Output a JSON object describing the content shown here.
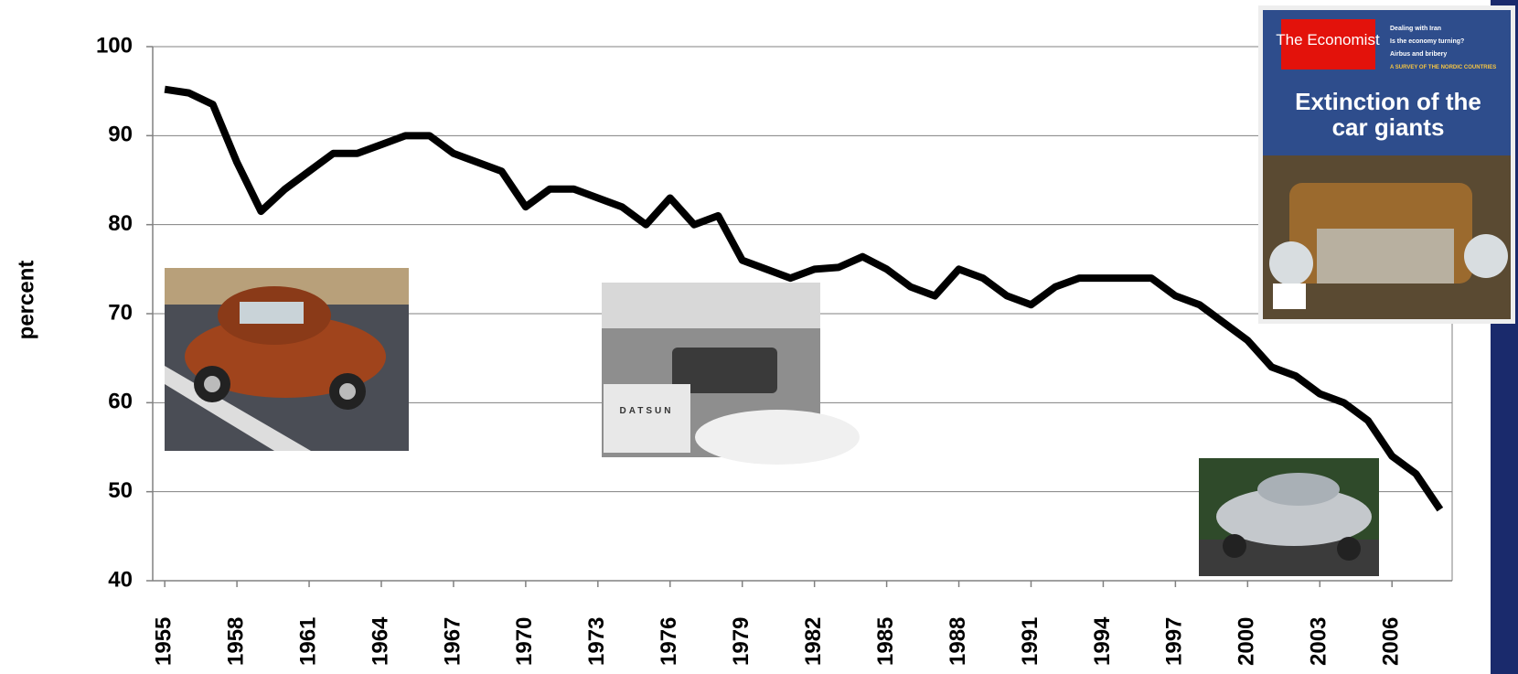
{
  "chart_data": {
    "type": "line",
    "ylabel": "percent",
    "x": [
      1955,
      1956,
      1957,
      1958,
      1959,
      1960,
      1961,
      1962,
      1963,
      1964,
      1965,
      1966,
      1967,
      1968,
      1969,
      1970,
      1971,
      1972,
      1973,
      1974,
      1975,
      1976,
      1977,
      1978,
      1979,
      1980,
      1981,
      1982,
      1983,
      1984,
      1985,
      1986,
      1987,
      1988,
      1989,
      1990,
      1991,
      1992,
      1993,
      1994,
      1995,
      1996,
      1997,
      1998,
      1999,
      2000,
      2001,
      2002,
      2003,
      2004,
      2005,
      2006,
      2007,
      2008
    ],
    "series": [
      {
        "color": "#000000",
        "values": [
          95.2,
          94.8,
          93.5,
          87,
          81.5,
          84,
          86,
          88,
          88,
          89,
          90,
          90,
          88,
          87,
          86,
          82,
          84,
          84,
          83,
          82,
          80,
          83,
          80,
          81,
          76,
          75,
          74,
          75,
          75.2,
          76.4,
          75,
          73,
          72,
          75,
          74,
          72,
          71,
          73,
          74,
          74,
          74,
          74,
          72,
          71,
          69,
          67,
          64,
          63,
          61,
          60,
          58,
          54,
          52,
          48
        ]
      }
    ],
    "xlim": [
      1954.5,
      2008.5
    ],
    "xticks": [
      1955,
      1958,
      1961,
      1964,
      1967,
      1970,
      1973,
      1976,
      1979,
      1982,
      1985,
      1988,
      1991,
      1994,
      1997,
      2000,
      2003,
      2006
    ],
    "ylim": [
      40,
      100
    ],
    "yticks": [
      40,
      50,
      60,
      70,
      80,
      90,
      100
    ],
    "grid": true
  },
  "cover": {
    "masthead": "The Economist",
    "headline": [
      "Extinction of the",
      "car giants"
    ],
    "teasers": [
      "Dealing with Iran",
      "Is the economy turning?",
      "Airbus and bribery",
      "A SURVEY OF THE NORDIC COUNTRIES"
    ]
  },
  "truck_plate": "DATSUN"
}
